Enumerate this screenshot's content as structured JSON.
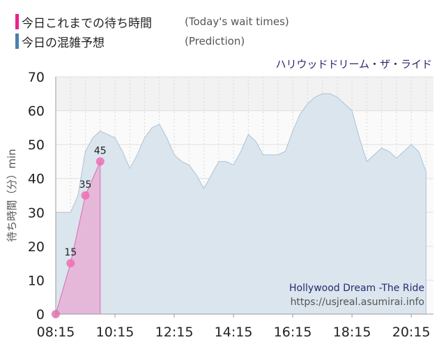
{
  "legend": {
    "today": {
      "label_jp": "今日これまでの待ち時間",
      "label_en": "(Today's wait times)",
      "color": "#ee1f88"
    },
    "prediction": {
      "label_jp": "今日の混雑予想",
      "label_en": "(Prediction)",
      "color": "#4a7fb0"
    }
  },
  "attraction_jp": "ハリウッドドリーム・ザ・ライド",
  "credits": {
    "name": "Hollywood Dream -The Ride",
    "site": "https://usjreal.asumirai.info"
  },
  "chart_data": {
    "type": "area",
    "ylabel": "待ち時間（分）min",
    "ylim": [
      0,
      70
    ],
    "yticks": [
      0,
      10,
      20,
      30,
      40,
      50,
      60,
      70
    ],
    "xlim": [
      "08:15",
      "21:00"
    ],
    "xticks": [
      "08:15",
      "10:15",
      "12:15",
      "14:15",
      "16:15",
      "18:15",
      "20:15"
    ],
    "grid": true,
    "series": [
      {
        "name": "今日の混雑予想",
        "x": [
          "08:15",
          "08:45",
          "09:00",
          "09:15",
          "09:30",
          "09:45",
          "10:00",
          "10:15",
          "10:30",
          "10:45",
          "11:00",
          "11:15",
          "11:30",
          "11:45",
          "12:00",
          "12:15",
          "12:30",
          "12:45",
          "13:00",
          "13:15",
          "13:30",
          "13:45",
          "14:00",
          "14:15",
          "14:30",
          "14:45",
          "15:00",
          "15:15",
          "15:30",
          "15:45",
          "16:00",
          "16:15",
          "16:30",
          "16:45",
          "17:00",
          "17:15",
          "17:30",
          "17:45",
          "18:00",
          "18:15",
          "18:30",
          "18:45",
          "19:00",
          "19:15",
          "19:30",
          "19:45",
          "20:00",
          "20:15",
          "20:30",
          "20:45"
        ],
        "values": [
          30,
          30,
          35,
          48,
          52,
          54,
          53,
          52,
          48,
          43,
          47,
          52,
          55,
          56,
          52,
          47,
          45,
          44,
          41,
          37,
          41,
          45,
          45,
          44,
          48,
          53,
          51,
          47,
          47,
          47,
          48,
          54,
          59,
          62,
          64,
          65,
          65,
          64,
          62,
          60,
          52,
          45,
          47,
          49,
          48,
          46,
          48,
          50,
          48,
          42
        ]
      },
      {
        "name": "今日これまでの待ち時間",
        "x": [
          "08:15",
          "08:45",
          "09:15",
          "09:45"
        ],
        "values": [
          0,
          15,
          35,
          45
        ],
        "labels": [
          "",
          "15",
          "35",
          "45"
        ]
      }
    ]
  }
}
